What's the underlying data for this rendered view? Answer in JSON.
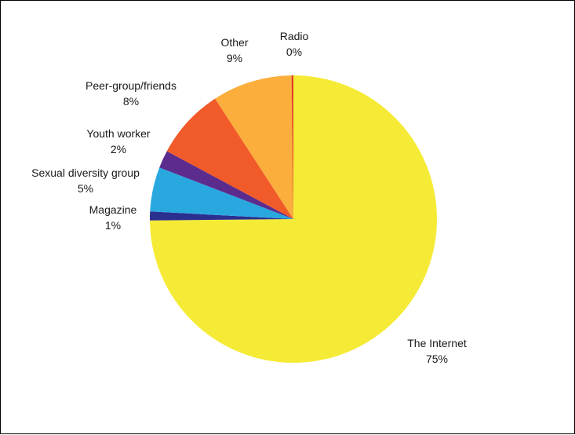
{
  "chart_data": {
    "type": "pie",
    "title": "",
    "legend": "none",
    "slices": [
      {
        "name": "The Internet",
        "value": 75,
        "label": "75%",
        "color": "#F5EB36"
      },
      {
        "name": "Magazine",
        "value": 1,
        "label": "1%",
        "color": "#2B2F8F"
      },
      {
        "name": "Sexual diversity group",
        "value": 5,
        "label": "5%",
        "color": "#29A8E0"
      },
      {
        "name": "Youth worker",
        "value": 2,
        "label": "2%",
        "color": "#5B2C8E"
      },
      {
        "name": "Peer-group/friends",
        "value": 8,
        "label": "8%",
        "color": "#F15A29"
      },
      {
        "name": "Other",
        "value": 9,
        "label": "9%",
        "color": "#FBAE3C"
      },
      {
        "name": "Radio",
        "value": 0.2,
        "label": "0%",
        "color": "#E03A1E"
      }
    ]
  }
}
